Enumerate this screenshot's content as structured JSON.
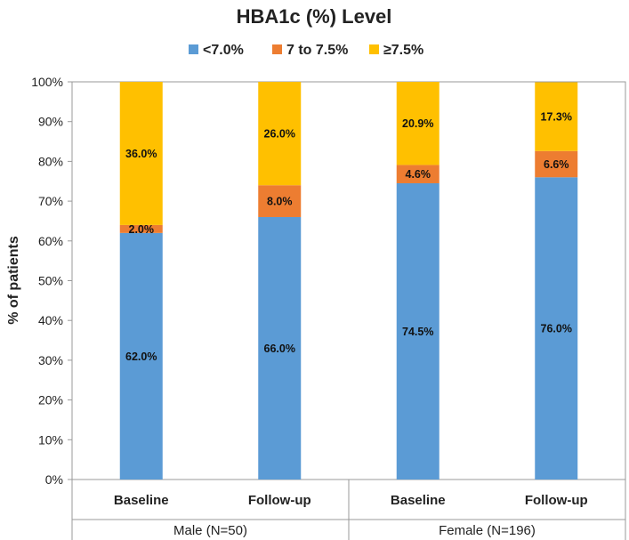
{
  "chart_data": {
    "type": "bar",
    "stacked": true,
    "title": "HBA1c (%) Level",
    "ylabel": "% of patients",
    "ylim": [
      0,
      100
    ],
    "yticks": [
      "0%",
      "10%",
      "20%",
      "30%",
      "40%",
      "50%",
      "60%",
      "70%",
      "80%",
      "90%",
      "100%"
    ],
    "legend_position": "top",
    "categories": [
      "Baseline",
      "Follow-up",
      "Baseline",
      "Follow-up"
    ],
    "groups": [
      {
        "label": "Male (N=50)",
        "categories": [
          0,
          1
        ]
      },
      {
        "label": "Female (N=196)",
        "categories": [
          2,
          3
        ]
      }
    ],
    "series": [
      {
        "name": "<7.0%",
        "color": "#5B9BD5",
        "values": [
          62.0,
          66.0,
          74.5,
          76.0
        ],
        "labels": [
          "62.0%",
          "66.0%",
          "74.5%",
          "76.0%"
        ]
      },
      {
        "name": "7 to 7.5%",
        "color": "#ED7D31",
        "values": [
          2.0,
          8.0,
          4.6,
          6.6
        ],
        "labels": [
          "2.0%",
          "8.0%",
          "4.6%",
          "6.6%"
        ]
      },
      {
        "name": "≥7.5%",
        "color": "#FFC000",
        "values": [
          36.0,
          26.0,
          20.9,
          17.3
        ],
        "labels": [
          "36.0%",
          "26.0%",
          "20.9%",
          "17.3%"
        ]
      }
    ],
    "grid": false
  }
}
